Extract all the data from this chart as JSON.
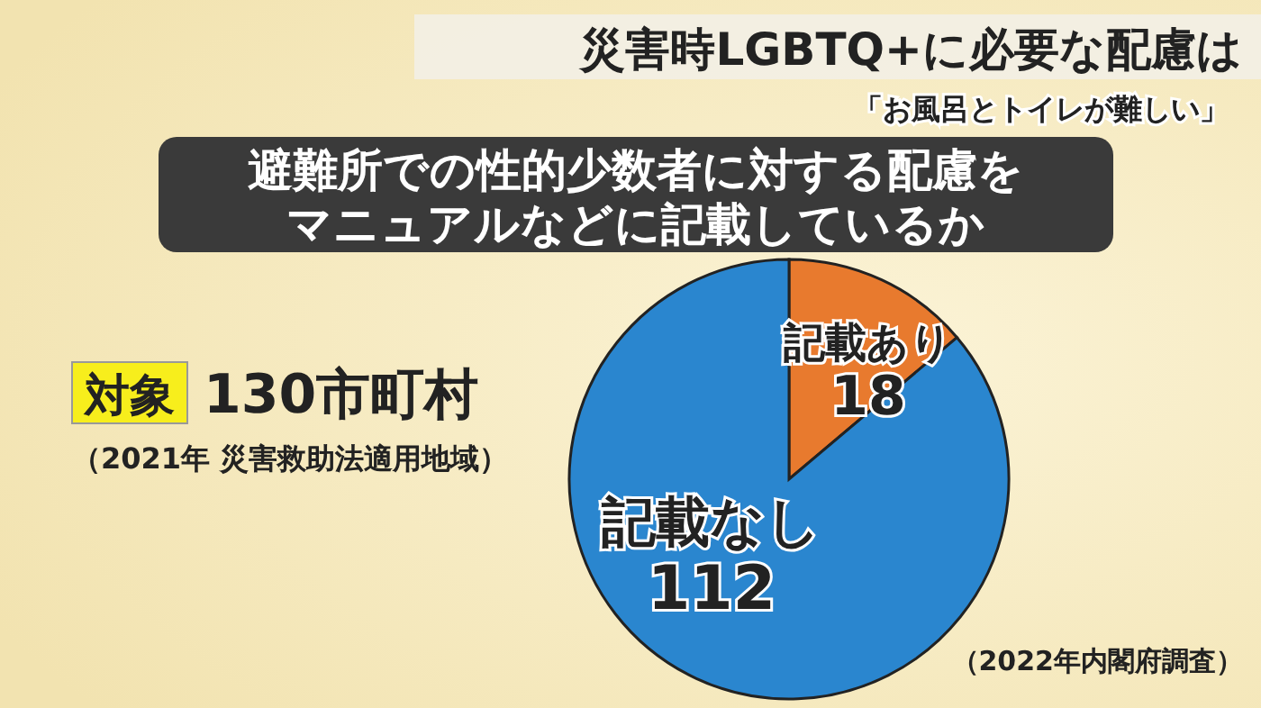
{
  "chart_data": {
    "type": "pie",
    "title": "避難所での性的少数者に対する配慮を",
    "subtitle": "マニュアルなどに記載しているか",
    "categories": [
      "記載あり",
      "記載なし"
    ],
    "values": [
      18,
      112
    ],
    "colors": [
      "#e87a2e",
      "#2a86cf"
    ],
    "data_labels": true,
    "annotations": [
      "災害時LGBTQ+に必要な配慮は",
      "「お風呂とトイレが難しい」",
      "対象",
      "130市町村",
      "（2021年 災害救助法適用地域）",
      "（2022年内閣府調査）"
    ]
  }
}
